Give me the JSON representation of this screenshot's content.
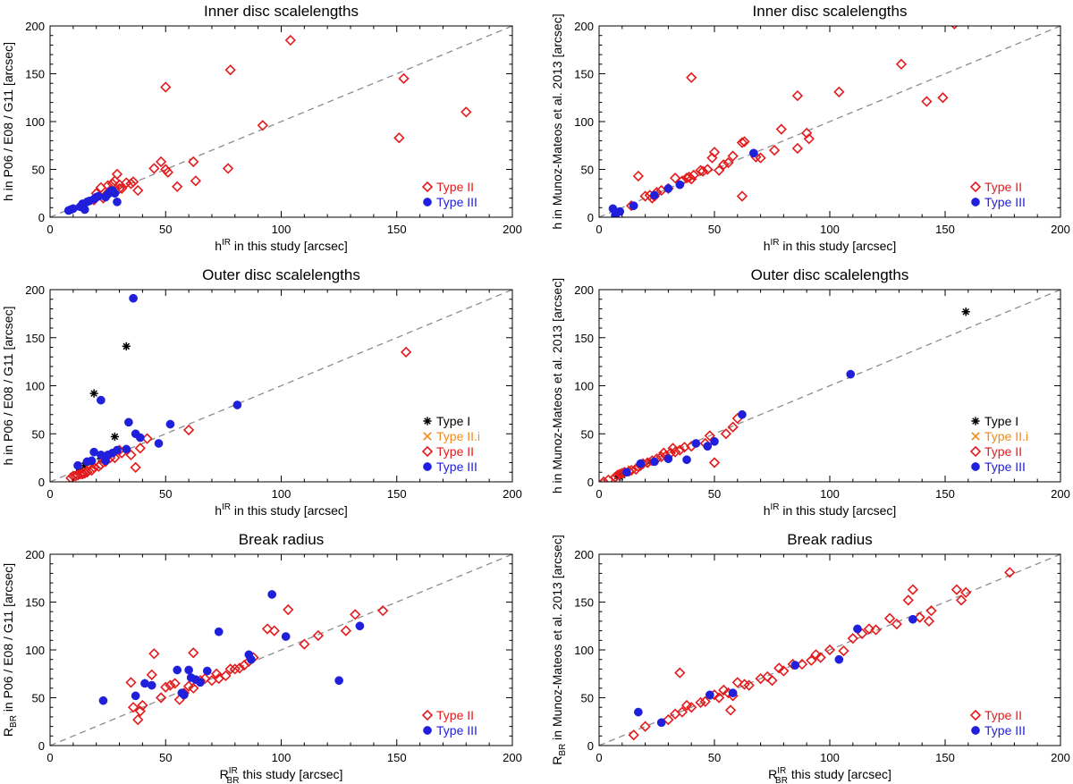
{
  "chart_data": [
    {
      "id": "p1",
      "type": "scatter",
      "title": "Inner disc scalelengths",
      "xlabel": {
        "base": "h",
        "sup": "IR",
        "sub": "",
        "rest": " in this study [arcsec]"
      },
      "ylabel": {
        "base": "h in P06 / E08 / G11 [arcsec]",
        "sub": "",
        "rest": ""
      },
      "xlim": [
        0,
        200
      ],
      "ylim": [
        0,
        200
      ],
      "xticks": [
        0,
        50,
        100,
        150,
        200
      ],
      "yticks": [
        0,
        50,
        100,
        150,
        200
      ],
      "one_to_one_line": true,
      "legend": [
        {
          "label": "Type II",
          "color": "#e41a1c",
          "marker": "diamond"
        },
        {
          "label": "Type III",
          "color": "#1f1fdc",
          "marker": "circle"
        }
      ],
      "series": [
        {
          "name": "Type II",
          "marker": "diamond",
          "color": "#e41a1c",
          "x": [
            104,
            78,
            50,
            153,
            180,
            92,
            151,
            62,
            48,
            45,
            50,
            51,
            77,
            55,
            63,
            38,
            35,
            33,
            29,
            28,
            27,
            30,
            25,
            22,
            20,
            19,
            24,
            31,
            26,
            36,
            30,
            23
          ],
          "y": [
            185,
            154,
            136,
            145,
            110,
            96,
            83,
            58,
            58,
            51,
            50,
            47,
            51,
            32,
            38,
            28,
            35,
            36,
            45,
            38,
            35,
            30,
            33,
            31,
            25,
            18,
            23,
            30,
            28,
            37,
            34,
            20
          ]
        },
        {
          "name": "Type III",
          "marker": "circle",
          "color": "#1f1fdc",
          "x": [
            8,
            9,
            10,
            13,
            14,
            15,
            16,
            17,
            19,
            20,
            21,
            25,
            26,
            27,
            28,
            29,
            24
          ],
          "y": [
            7,
            8,
            9,
            11,
            14,
            8,
            16,
            17,
            19,
            21,
            22,
            24,
            27,
            28,
            25,
            16,
            21
          ]
        }
      ]
    },
    {
      "id": "p2",
      "type": "scatter",
      "title": "Inner disc scalelengths",
      "xlabel": {
        "base": "h",
        "sup": "IR",
        "sub": "",
        "rest": " in this study [arcsec]"
      },
      "ylabel": {
        "base": "h in Munoz-Mateos et al. 2013 [arcsec]",
        "sub": "",
        "rest": ""
      },
      "xlim": [
        0,
        200
      ],
      "ylim": [
        0,
        200
      ],
      "xticks": [
        0,
        50,
        100,
        150,
        200
      ],
      "yticks": [
        0,
        50,
        100,
        150,
        200
      ],
      "one_to_one_line": true,
      "legend": [
        {
          "label": "Type II",
          "color": "#e41a1c",
          "marker": "diamond"
        },
        {
          "label": "Type III",
          "color": "#1f1fdc",
          "marker": "circle"
        }
      ],
      "series": [
        {
          "name": "Type II",
          "marker": "diamond",
          "color": "#e41a1c",
          "x": [
            154,
            40,
            131,
            86,
            104,
            142,
            149,
            91,
            79,
            63,
            62,
            58,
            50,
            49,
            47,
            45,
            44,
            41,
            40,
            39,
            38,
            36,
            33,
            30,
            27,
            25,
            24,
            23,
            22,
            20,
            17,
            14,
            62,
            76,
            86,
            90,
            70,
            68,
            54,
            52,
            56
          ],
          "y": [
            202,
            146,
            160,
            127,
            131,
            121,
            125,
            82,
            92,
            79,
            78,
            64,
            68,
            62,
            50,
            48,
            49,
            44,
            40,
            42,
            41,
            38,
            41,
            30,
            28,
            26,
            22,
            20,
            23,
            22,
            43,
            12,
            22,
            70,
            72,
            88,
            62,
            63,
            55,
            49,
            57
          ]
        },
        {
          "name": "Type III",
          "marker": "circle",
          "color": "#1f1fdc",
          "x": [
            6,
            7,
            9,
            15,
            24,
            30,
            35,
            67
          ],
          "y": [
            9,
            2,
            6,
            12,
            23,
            30,
            34,
            67
          ]
        }
      ]
    },
    {
      "id": "p3",
      "type": "scatter",
      "title": "Outer disc scalelengths",
      "xlabel": {
        "base": "h",
        "sup": "IR",
        "sub": "",
        "rest": " in this study [arcsec]"
      },
      "ylabel": {
        "base": "h in P06 / E08 / G11 [arcsec]",
        "sub": "",
        "rest": ""
      },
      "xlim": [
        0,
        200
      ],
      "ylim": [
        0,
        200
      ],
      "xticks": [
        0,
        50,
        100,
        150,
        200
      ],
      "yticks": [
        0,
        50,
        100,
        150,
        200
      ],
      "one_to_one_line": true,
      "legend": [
        {
          "label": "Type I",
          "color": "#000000",
          "marker": "asterisk"
        },
        {
          "label": "Type II.i",
          "color": "#f28a1a",
          "marker": "cross"
        },
        {
          "label": "Type II",
          "color": "#e41a1c",
          "marker": "diamond"
        },
        {
          "label": "Type III",
          "color": "#1f1fdc",
          "marker": "circle"
        }
      ],
      "series": [
        {
          "name": "Type I",
          "marker": "asterisk",
          "color": "#000000",
          "x": [
            33,
            19,
            28,
            22,
            24,
            15,
            13
          ],
          "y": [
            141,
            92,
            47,
            24,
            26,
            17,
            12
          ]
        },
        {
          "name": "Type II.i",
          "marker": "cross",
          "color": "#f28a1a",
          "x": [
            23,
            17
          ],
          "y": [
            26,
            18
          ]
        },
        {
          "name": "Type II",
          "marker": "diamond",
          "color": "#e41a1c",
          "x": [
            154,
            60,
            42,
            39,
            35,
            37,
            31,
            28,
            26,
            24,
            22,
            21,
            19,
            18,
            16,
            15,
            14,
            13,
            12,
            11,
            10,
            9,
            14,
            17,
            25,
            30
          ],
          "y": [
            135,
            54,
            45,
            35,
            28,
            15,
            30,
            25,
            25,
            21,
            18,
            16,
            15,
            12,
            10,
            9,
            9,
            8,
            7,
            6,
            6,
            4,
            8,
            18,
            27,
            33
          ]
        },
        {
          "name": "Type III",
          "marker": "circle",
          "color": "#1f1fdc",
          "x": [
            36,
            22,
            81,
            52,
            34,
            47,
            37,
            39,
            33,
            29,
            27,
            25,
            22,
            19,
            18,
            16,
            12,
            24
          ],
          "y": [
            191,
            85,
            80,
            60,
            62,
            40,
            50,
            46,
            34,
            33,
            30,
            28,
            28,
            31,
            22,
            21,
            17,
            22
          ]
        }
      ]
    },
    {
      "id": "p4",
      "type": "scatter",
      "title": "Outer disc scalelengths",
      "xlabel": {
        "base": "h",
        "sup": "IR",
        "sub": "",
        "rest": " in this study [arcsec]"
      },
      "ylabel": {
        "base": "h in Munoz-Mateos et al. 2013 [arcsec]",
        "sub": "",
        "rest": ""
      },
      "xlim": [
        0,
        200
      ],
      "ylim": [
        0,
        200
      ],
      "xticks": [
        0,
        50,
        100,
        150,
        200
      ],
      "yticks": [
        0,
        50,
        100,
        150,
        200
      ],
      "one_to_one_line": true,
      "legend": [
        {
          "label": "Type I",
          "color": "#000000",
          "marker": "asterisk"
        },
        {
          "label": "Type II.i",
          "color": "#f28a1a",
          "marker": "cross"
        },
        {
          "label": "Type II",
          "color": "#e41a1c",
          "marker": "diamond"
        },
        {
          "label": "Type III",
          "color": "#1f1fdc",
          "marker": "circle"
        }
      ],
      "series": [
        {
          "name": "Type I",
          "marker": "asterisk",
          "color": "#000000",
          "x": [
            159,
            10,
            9,
            8,
            22
          ],
          "y": [
            177,
            7,
            5,
            6,
            21
          ]
        },
        {
          "name": "Type II.i",
          "marker": "cross",
          "color": "#f28a1a",
          "x": [
            14,
            20
          ],
          "y": [
            13,
            19
          ]
        },
        {
          "name": "Type II",
          "marker": "diamond",
          "color": "#e41a1c",
          "x": [
            60,
            58,
            55,
            48,
            50,
            46,
            40,
            37,
            35,
            33,
            31,
            29,
            27,
            25,
            23,
            21,
            19,
            18,
            17,
            16,
            14,
            13,
            11,
            10,
            9,
            8,
            7,
            4,
            2,
            28,
            32
          ],
          "y": [
            66,
            57,
            50,
            48,
            20,
            40,
            37,
            36,
            33,
            31,
            30,
            27,
            26,
            24,
            22,
            20,
            19,
            17,
            16,
            13,
            12,
            11,
            10,
            9,
            8,
            7,
            5,
            2,
            0,
            30,
            35
          ]
        },
        {
          "name": "Type III",
          "marker": "circle",
          "color": "#1f1fdc",
          "x": [
            109,
            62,
            50,
            47,
            42,
            38,
            30,
            24,
            18,
            12
          ],
          "y": [
            112,
            70,
            42,
            37,
            40,
            23,
            24,
            21,
            19,
            10
          ]
        }
      ]
    },
    {
      "id": "p5",
      "type": "scatter",
      "title": "Break radius",
      "xlabel": {
        "base": "R",
        "sup": "IR",
        "sub": "BR",
        "rest": " this study [arcsec]"
      },
      "ylabel": {
        "base": "R",
        "sub": "BR",
        "rest": " in P06 / E08 / G11 [arcsec]"
      },
      "xlim": [
        0,
        200
      ],
      "ylim": [
        0,
        200
      ],
      "xticks": [
        0,
        50,
        100,
        150,
        200
      ],
      "yticks": [
        0,
        50,
        100,
        150,
        200
      ],
      "one_to_one_line": true,
      "legend": [
        {
          "label": "Type II",
          "color": "#e41a1c",
          "marker": "diamond"
        },
        {
          "label": "Type III",
          "color": "#1f1fdc",
          "marker": "circle"
        }
      ],
      "series": [
        {
          "name": "Type II",
          "marker": "diamond",
          "color": "#e41a1c",
          "x": [
            144,
            132,
            128,
            116,
            110,
            103,
            97,
            94,
            88,
            86,
            84,
            82,
            80,
            78,
            76,
            72,
            70,
            67,
            65,
            62,
            60,
            58,
            56,
            54,
            52,
            50,
            48,
            45,
            44,
            40,
            39,
            38,
            36,
            35,
            62,
            73
          ],
          "y": [
            141,
            137,
            120,
            115,
            106,
            142,
            120,
            122,
            92,
            88,
            84,
            81,
            80,
            80,
            73,
            75,
            68,
            70,
            68,
            97,
            62,
            55,
            48,
            65,
            63,
            61,
            50,
            96,
            74,
            42,
            36,
            27,
            40,
            66,
            60,
            70
          ]
        },
        {
          "name": "Type III",
          "marker": "circle",
          "color": "#1f1fdc",
          "x": [
            23,
            37,
            41,
            44,
            55,
            57,
            58,
            60,
            61,
            63,
            65,
            68,
            73,
            86,
            87,
            96,
            102,
            125,
            134
          ],
          "y": [
            47,
            52,
            65,
            63,
            79,
            55,
            53,
            79,
            71,
            69,
            66,
            78,
            119,
            95,
            90,
            158,
            114,
            68,
            125
          ]
        }
      ]
    },
    {
      "id": "p6",
      "type": "scatter",
      "title": "Break radius",
      "xlabel": {
        "base": "R",
        "sup": "IR",
        "sub": "BR",
        "rest": " this study [arcsec]"
      },
      "ylabel": {
        "base": "R",
        "sub": "BR",
        "rest": " in Munoz-Mateos et al. 2013 [arcsec]"
      },
      "xlim": [
        0,
        200
      ],
      "ylim": [
        0,
        200
      ],
      "xticks": [
        0,
        50,
        100,
        150,
        200
      ],
      "yticks": [
        0,
        50,
        100,
        150,
        200
      ],
      "one_to_one_line": true,
      "legend": [
        {
          "label": "Type II",
          "color": "#e41a1c",
          "marker": "diamond"
        },
        {
          "label": "Type III",
          "color": "#1f1fdc",
          "marker": "circle"
        }
      ],
      "series": [
        {
          "name": "Type II",
          "marker": "diamond",
          "color": "#e41a1c",
          "x": [
            178,
            159,
            157,
            155,
            144,
            143,
            139,
            136,
            134,
            129,
            126,
            120,
            117,
            114,
            110,
            106,
            100,
            96,
            94,
            92,
            88,
            84,
            80,
            78,
            75,
            73,
            70,
            65,
            63,
            60,
            58,
            56,
            54,
            52,
            50,
            46,
            44,
            40,
            38,
            36,
            35,
            33,
            30,
            20,
            15,
            57,
            139
          ],
          "y": [
            181,
            160,
            152,
            163,
            141,
            130,
            134,
            163,
            152,
            127,
            133,
            121,
            122,
            117,
            112,
            99,
            100,
            92,
            95,
            89,
            85,
            85,
            78,
            81,
            68,
            72,
            70,
            63,
            64,
            66,
            52,
            55,
            58,
            50,
            53,
            46,
            45,
            40,
            42,
            35,
            76,
            33,
            27,
            20,
            11,
            37,
            134
          ]
        },
        {
          "name": "Type III",
          "marker": "circle",
          "color": "#1f1fdc",
          "x": [
            17,
            27,
            48,
            58,
            85,
            104,
            112,
            136
          ],
          "y": [
            35,
            24,
            53,
            55,
            84,
            90,
            122,
            132
          ]
        }
      ]
    }
  ]
}
